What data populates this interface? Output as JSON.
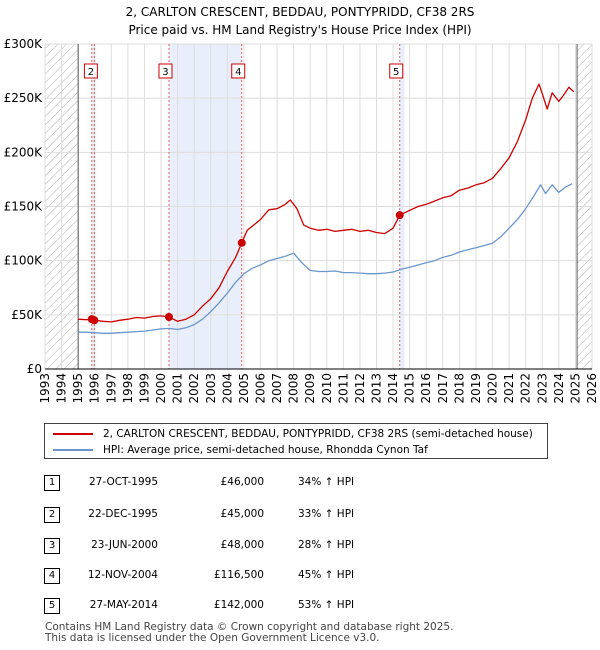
{
  "chart_data": {
    "type": "line",
    "title": "2, CARLTON CRESCENT, BEDDAU, PONTYPRIDD, CF38 2RS",
    "subtitle": "Price paid vs. HM Land Registry's House Price Index (HPI)",
    "xlim": [
      1993,
      2026
    ],
    "ylim": [
      0,
      300000
    ],
    "x_ticks": [
      "1993",
      "1994",
      "1995",
      "1996",
      "1997",
      "1998",
      "1999",
      "2000",
      "2001",
      "2002",
      "2003",
      "2004",
      "2005",
      "2006",
      "2007",
      "2008",
      "2009",
      "2010",
      "2011",
      "2012",
      "2013",
      "2014",
      "2015",
      "2016",
      "2017",
      "2018",
      "2019",
      "2020",
      "2021",
      "2022",
      "2023",
      "2024",
      "2025",
      "2026"
    ],
    "y_ticks": [
      {
        "value": 0,
        "label": "£0"
      },
      {
        "value": 50000,
        "label": "£50K"
      },
      {
        "value": 100000,
        "label": "£100K"
      },
      {
        "value": 150000,
        "label": "£150K"
      },
      {
        "value": 200000,
        "label": "£200K"
      },
      {
        "value": 250000,
        "label": "£250K"
      },
      {
        "value": 300000,
        "label": "£300K"
      }
    ],
    "grid": true,
    "hatched_ranges": [
      [
        1993,
        1995.0
      ],
      [
        2025.1,
        2026
      ]
    ],
    "shaded_ranges": [
      [
        1995.82,
        1995.98
      ],
      [
        2000.48,
        2004.87
      ],
      [
        2014.4,
        2014.7
      ]
    ],
    "series": [
      {
        "name": "2, CARLTON CRESCENT, BEDDAU, PONTYPRIDD, CF38 2RS (semi-detached house)",
        "color": "#cc0000",
        "x": [
          1995.0,
          1995.5,
          1995.82,
          1995.98,
          1996.5,
          1997.0,
          1997.5,
          1998.0,
          1998.5,
          1999.0,
          1999.5,
          2000.0,
          2000.48,
          2001.0,
          2001.5,
          2002.0,
          2002.5,
          2003.0,
          2003.5,
          2004.0,
          2004.5,
          2004.87,
          2005.2,
          2005.6,
          2006.0,
          2006.5,
          2007.0,
          2007.5,
          2007.8,
          2008.2,
          2008.6,
          2009.0,
          2009.5,
          2010.0,
          2010.5,
          2011.0,
          2011.5,
          2012.0,
          2012.5,
          2013.0,
          2013.5,
          2014.0,
          2014.4,
          2014.8,
          2015.5,
          2016.0,
          2016.5,
          2017.0,
          2017.5,
          2018.0,
          2018.5,
          2019.0,
          2019.5,
          2020.0,
          2020.5,
          2021.0,
          2021.5,
          2022.0,
          2022.4,
          2022.8,
          2023.0,
          2023.3,
          2023.6,
          2024.0,
          2024.3,
          2024.6,
          2024.9
        ],
        "values": [
          46000,
          45500,
          46000,
          45000,
          44000,
          43500,
          45000,
          46000,
          47500,
          47000,
          48500,
          49000,
          48000,
          44000,
          46000,
          50000,
          58000,
          65000,
          75000,
          90000,
          103000,
          116500,
          128000,
          133000,
          138000,
          147000,
          148000,
          152000,
          156000,
          148000,
          133000,
          130000,
          128000,
          129000,
          127000,
          128000,
          129000,
          127000,
          128000,
          126000,
          125000,
          130000,
          142000,
          145000,
          150000,
          152000,
          155000,
          158000,
          160000,
          165000,
          167000,
          170000,
          172000,
          176000,
          185000,
          195000,
          210000,
          230000,
          250000,
          263000,
          254000,
          240000,
          255000,
          247000,
          253000,
          260000,
          256000
        ]
      },
      {
        "name": "HPI: Average price, semi-detached house, Rhondda Cynon Taf",
        "color": "#6a96cc",
        "x": [
          1995.0,
          1995.5,
          1996.0,
          1996.5,
          1997.0,
          1997.5,
          1998.0,
          1998.5,
          1999.0,
          1999.5,
          2000.0,
          2000.5,
          2001.0,
          2001.5,
          2002.0,
          2002.5,
          2003.0,
          2003.5,
          2004.0,
          2004.5,
          2005.0,
          2005.5,
          2006.0,
          2006.5,
          2007.0,
          2007.5,
          2008.0,
          2008.5,
          2009.0,
          2009.5,
          2010.0,
          2010.5,
          2011.0,
          2011.5,
          2012.0,
          2012.5,
          2013.0,
          2013.5,
          2014.0,
          2014.5,
          2015.0,
          2015.5,
          2016.0,
          2016.5,
          2017.0,
          2017.5,
          2018.0,
          2018.5,
          2019.0,
          2019.5,
          2020.0,
          2020.5,
          2021.0,
          2021.5,
          2022.0,
          2022.5,
          2022.9,
          2023.2,
          2023.6,
          2024.0,
          2024.4,
          2024.8
        ],
        "values": [
          34000,
          34000,
          33500,
          33000,
          33000,
          33500,
          34000,
          34500,
          35000,
          36000,
          37000,
          37500,
          36500,
          38000,
          41000,
          46000,
          53000,
          61000,
          70000,
          80000,
          88000,
          93000,
          96000,
          100000,
          102000,
          104000,
          107000,
          98000,
          91000,
          90000,
          90000,
          90500,
          89000,
          89000,
          88500,
          88000,
          88000,
          88500,
          89500,
          92000,
          94000,
          96000,
          98000,
          100000,
          103000,
          105000,
          108000,
          110000,
          112000,
          114000,
          116000,
          122000,
          130000,
          138000,
          148000,
          160000,
          170000,
          162000,
          170000,
          163000,
          168000,
          171000
        ]
      }
    ],
    "transactions": [
      {
        "num": "1",
        "x": 1995.82,
        "value": 46000,
        "date": "27-OCT-1995",
        "price": "£46,000",
        "hpi": "34% ↑ HPI"
      },
      {
        "num": "2",
        "x": 1995.98,
        "value": 45000,
        "date": "22-DEC-1995",
        "price": "£45,000",
        "hpi": "33% ↑ HPI"
      },
      {
        "num": "3",
        "x": 2000.48,
        "value": 48000,
        "date": "23-JUN-2000",
        "price": "£48,000",
        "hpi": "28% ↑ HPI"
      },
      {
        "num": "4",
        "x": 2004.87,
        "value": 116500,
        "date": "12-NOV-2004",
        "price": "£116,500",
        "hpi": "45% ↑ HPI"
      },
      {
        "num": "5",
        "x": 2014.4,
        "value": 142000,
        "date": "27-MAY-2014",
        "price": "£142,000",
        "hpi": "53% ↑ HPI"
      }
    ],
    "chart_labels": [
      "2",
      "3",
      "4",
      "5"
    ]
  },
  "legend": {
    "property_label": "2, CARLTON CRESCENT, BEDDAU, PONTYPRIDD, CF38 2RS (semi-detached house)",
    "hpi_label": "HPI: Average price, semi-detached house, Rhondda Cynon Taf"
  },
  "footer": {
    "line1": "Contains HM Land Registry data © Crown copyright and database right 2025.",
    "line2": "This data is licensed under the Open Government Licence v3.0."
  }
}
